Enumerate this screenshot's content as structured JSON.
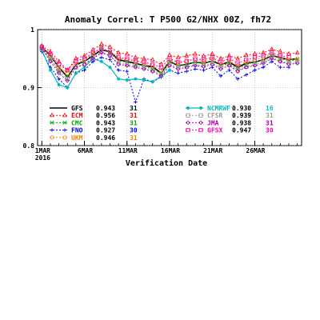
{
  "chart_data": {
    "type": "line",
    "title": "Anomaly Correl: T P500  G2/NHX 00Z, fh72",
    "xlabel": "Verification Date",
    "ylabel": "",
    "ylim": [
      0.8,
      1.0
    ],
    "yticks": [
      "0.8",
      "0.9",
      "1"
    ],
    "x": [
      1,
      2,
      3,
      4,
      5,
      6,
      7,
      8,
      9,
      10,
      11,
      12,
      13,
      14,
      15,
      16,
      17,
      18,
      19,
      20,
      21,
      22,
      23,
      24,
      25,
      26,
      27,
      28,
      29,
      30,
      31
    ],
    "xtick_labels": [
      {
        "x": 1,
        "line1": "1MAR",
        "line2": "2016"
      },
      {
        "x": 6,
        "line1": "6MAR",
        "line2": ""
      },
      {
        "x": 11,
        "line1": "11MAR",
        "line2": ""
      },
      {
        "x": 16,
        "line1": "16MAR",
        "line2": ""
      },
      {
        "x": 21,
        "line1": "21MAR",
        "line2": ""
      },
      {
        "x": 26,
        "line1": "26MAR",
        "line2": ""
      }
    ],
    "series": [
      {
        "name": "GFS",
        "score": "0.943",
        "count": "31",
        "color": "#000000",
        "dash": "",
        "marker": "none",
        "width": 1.6,
        "values": [
          0.97,
          0.955,
          0.935,
          0.918,
          0.94,
          0.945,
          0.955,
          0.965,
          0.962,
          0.948,
          0.945,
          0.942,
          0.938,
          0.936,
          0.925,
          0.945,
          0.938,
          0.94,
          0.944,
          0.942,
          0.946,
          0.94,
          0.944,
          0.935,
          0.942,
          0.944,
          0.948,
          0.955,
          0.952,
          0.948,
          0.95
        ]
      },
      {
        "name": "ECM",
        "score": "0.956",
        "count": "31",
        "color": "#ff0000",
        "dash": "2,2",
        "marker": "triangle",
        "width": 1,
        "values": [
          0.972,
          0.962,
          0.945,
          0.93,
          0.95,
          0.955,
          0.965,
          0.975,
          0.97,
          0.96,
          0.958,
          0.952,
          0.95,
          0.948,
          0.94,
          0.956,
          0.952,
          0.955,
          0.958,
          0.954,
          0.958,
          0.95,
          0.955,
          0.95,
          0.956,
          0.958,
          0.96,
          0.966,
          0.962,
          0.958,
          0.96
        ]
      },
      {
        "name": "CMC",
        "score": "0.943",
        "count": "31",
        "color": "#00aa00",
        "dash": "2,2",
        "marker": "x",
        "width": 1,
        "values": [
          0.968,
          0.95,
          0.93,
          0.92,
          0.938,
          0.945,
          0.958,
          0.968,
          0.96,
          0.946,
          0.944,
          0.94,
          0.938,
          0.932,
          0.925,
          0.944,
          0.938,
          0.94,
          0.944,
          0.942,
          0.946,
          0.938,
          0.942,
          0.932,
          0.94,
          0.944,
          0.948,
          0.956,
          0.95,
          0.946,
          0.948
        ]
      },
      {
        "name": "FNO",
        "score": "0.927",
        "count": "30",
        "color": "#0000ff",
        "dash": "2,2",
        "marker": "plus",
        "width": 1,
        "values": [
          0.962,
          0.935,
          0.915,
          0.9,
          0.925,
          0.93,
          0.945,
          0.952,
          0.948,
          0.93,
          0.928,
          0.875,
          0.915,
          0.91,
          0.918,
          0.93,
          0.925,
          0.928,
          0.932,
          0.93,
          0.935,
          0.92,
          0.93,
          0.915,
          0.922,
          0.93,
          0.935,
          0.945,
          0.935,
          0.935,
          null
        ]
      },
      {
        "name": "UKM",
        "score": "0.946",
        "count": "31",
        "color": "#ff8000",
        "dash": "2,2",
        "marker": "circle",
        "width": 1,
        "values": [
          0.97,
          0.955,
          0.935,
          0.925,
          0.942,
          0.948,
          0.958,
          0.968,
          0.962,
          0.95,
          0.948,
          0.945,
          0.942,
          0.938,
          0.93,
          0.948,
          0.942,
          0.945,
          0.948,
          0.945,
          0.95,
          0.94,
          0.946,
          0.938,
          0.944,
          0.948,
          0.952,
          0.958,
          0.952,
          0.948,
          0.95
        ]
      },
      {
        "name": "NCMRWF",
        "score": "0.930",
        "count": "16",
        "color": "#00bbbb",
        "dash": "",
        "marker": "dot",
        "width": 1.2,
        "values": [
          0.965,
          0.93,
          0.905,
          0.9,
          0.925,
          0.935,
          0.95,
          0.945,
          0.935,
          0.915,
          0.913,
          0.915,
          0.913,
          0.91,
          0.92,
          0.93,
          null,
          null,
          null,
          null,
          null,
          null,
          null,
          null,
          null,
          null,
          null,
          null,
          null,
          null,
          null
        ]
      },
      {
        "name": "CFSR",
        "score": "0.939",
        "count": "31",
        "color": "#999999",
        "dash": "2,2",
        "marker": "square",
        "width": 1,
        "values": [
          0.966,
          0.948,
          0.928,
          0.915,
          0.935,
          0.94,
          0.952,
          0.962,
          0.955,
          0.942,
          0.94,
          0.938,
          0.935,
          0.93,
          0.922,
          0.94,
          0.935,
          0.936,
          0.94,
          0.938,
          0.942,
          0.935,
          0.94,
          0.93,
          0.936,
          0.94,
          0.944,
          0.952,
          0.946,
          0.942,
          0.944
        ]
      },
      {
        "name": "JMA",
        "score": "0.938",
        "count": "31",
        "color": "#aa00aa",
        "dash": "2,2",
        "marker": "diamond",
        "width": 1,
        "values": [
          0.968,
          0.945,
          0.925,
          0.912,
          0.935,
          0.94,
          0.95,
          0.96,
          0.955,
          0.94,
          0.938,
          0.935,
          0.932,
          0.928,
          0.92,
          0.938,
          0.932,
          0.935,
          0.938,
          0.936,
          0.94,
          0.932,
          0.938,
          0.928,
          0.935,
          0.938,
          0.942,
          0.95,
          0.945,
          0.94,
          0.942
        ]
      },
      {
        "name": "GFSX",
        "score": "0.947",
        "count": "30",
        "color": "#ff00aa",
        "dash": "2,2",
        "marker": "square",
        "width": 1,
        "values": [
          0.97,
          0.958,
          0.94,
          0.93,
          0.946,
          0.95,
          0.96,
          0.968,
          0.962,
          0.952,
          0.95,
          0.946,
          0.944,
          0.94,
          0.935,
          0.95,
          0.944,
          0.946,
          0.95,
          0.948,
          0.952,
          0.944,
          0.95,
          0.942,
          0.948,
          0.952,
          0.955,
          0.96,
          0.955,
          0.952,
          null
        ]
      }
    ]
  }
}
